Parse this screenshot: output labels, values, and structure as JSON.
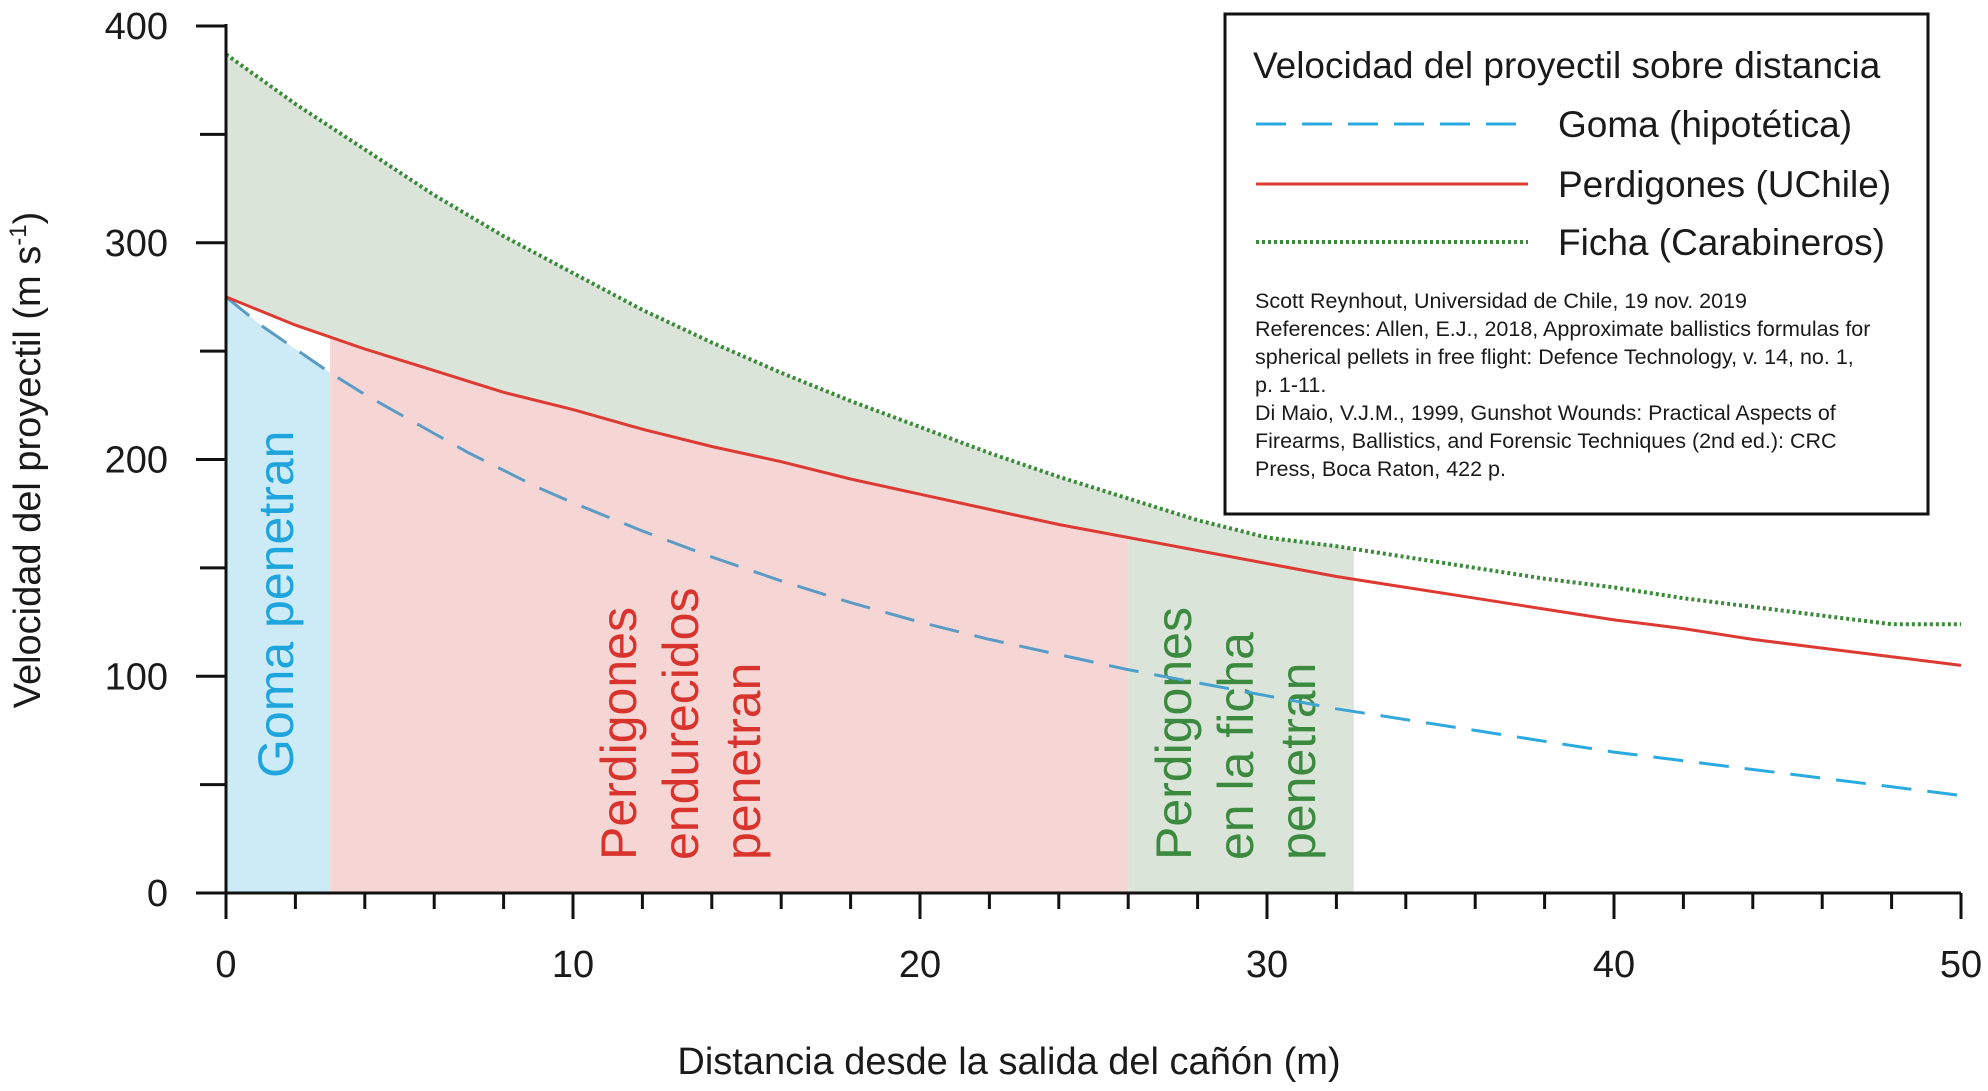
{
  "chart_data": {
    "type": "line",
    "xlabel": "Distancia desde la salida del cañón (m)",
    "ylabel_main": "Velocidad del proyectil (m s",
    "ylabel_sup": "-1",
    "ylabel_close": ")",
    "xlim": [
      0,
      50
    ],
    "ylim": [
      0,
      400
    ],
    "x_ticks": [
      0,
      10,
      20,
      30,
      40,
      50
    ],
    "y_ticks": [
      0,
      100,
      200,
      300,
      400
    ],
    "x_minor_step": 2,
    "y_minor_step": 50,
    "grid": false,
    "legend": {
      "title": "Velocidad del proyectil sobre distancia",
      "position": "top-right"
    },
    "series": [
      {
        "name": "Goma (hipotética)",
        "style": "dashed",
        "color": "#29abe2",
        "color_end": "#5b9bc4",
        "x": [
          0,
          1,
          2,
          3,
          4,
          5,
          6,
          7,
          8,
          9,
          10,
          12,
          14,
          16,
          18,
          20,
          22,
          24,
          26,
          28,
          30,
          32,
          34,
          36,
          38,
          40,
          42,
          44,
          46,
          48,
          50
        ],
        "values": [
          275,
          262,
          251,
          240,
          230,
          221,
          212,
          203,
          195,
          187,
          180,
          167,
          155,
          144,
          134,
          125,
          117,
          110,
          103,
          97,
          91,
          85,
          80,
          75,
          70,
          65,
          61,
          57,
          53,
          49,
          45
        ]
      },
      {
        "name": "Perdigones (UChile)",
        "style": "solid",
        "color": "#dc3a32",
        "x": [
          0,
          2,
          4,
          6,
          8,
          10,
          12,
          14,
          16,
          18,
          20,
          22,
          24,
          26,
          28,
          30,
          32,
          34,
          36,
          38,
          40,
          42,
          44,
          46,
          48,
          50
        ],
        "values": [
          275,
          262,
          251,
          241,
          231,
          223,
          214,
          206,
          199,
          191,
          184,
          177,
          170,
          164,
          158,
          152,
          146,
          141,
          136,
          131,
          126,
          122,
          117,
          113,
          109,
          105
        ]
      },
      {
        "name": "Ficha (Carabineros)",
        "style": "dotted",
        "color": "#3a8a3a",
        "x": [
          0,
          2,
          4,
          6,
          8,
          10,
          12,
          14,
          16,
          18,
          20,
          22,
          24,
          26,
          28,
          30,
          32,
          34,
          36,
          38,
          40,
          42,
          44,
          46,
          48,
          50
        ],
        "values": [
          387,
          364,
          343,
          322,
          303,
          286,
          269,
          254,
          240,
          227,
          215,
          203,
          192,
          182,
          172,
          164,
          160,
          155,
          150,
          145,
          141,
          136,
          132,
          128,
          124,
          124
        ]
      }
    ],
    "regions": [
      {
        "label_lines": [
          "Goma penetran"
        ],
        "x_start": 0,
        "x_end": 3,
        "upper": "Goma (hipotética)",
        "fill": "#cdebf7",
        "text_color": "#1fa5de"
      },
      {
        "label_lines": [
          "Perdigones",
          "endurecidos",
          "penetran"
        ],
        "x_start": 3,
        "x_end": 26,
        "upper": "Perdigones (UChile)",
        "fill": "#f5d6d4",
        "text_color": "#d8332c"
      },
      {
        "label_lines": [
          "Perdigones",
          "en la ficha",
          "penetran"
        ],
        "x_start": 26,
        "x_end": 32.5,
        "upper": "Perdigones (UChile)",
        "fill": "#dbe4d9",
        "text_color": "#3b8a3f"
      },
      {
        "label_lines": [],
        "x_start": 0,
        "x_end": 32.5,
        "upper": "Ficha (Carabineros)",
        "lower": "Perdigones (UChile)",
        "fill": "#dbe4d9"
      }
    ],
    "annotations": [
      "Scott Reynhout, Universidad de Chile, 19 nov. 2019",
      "References: Allen, E.J., 2018, Approximate ballistics formulas for",
      "spherical pellets in free flight: Defence Technology, v. 14, no. 1,",
      "p. 1-11.",
      "Di Maio, V.J.M., 1999, Gunshot Wounds: Practical Aspects of",
      "Firearms, Ballistics, and Forensic Techniques (2nd ed.): CRC",
      "Press, Boca Raton, 422 p."
    ]
  }
}
